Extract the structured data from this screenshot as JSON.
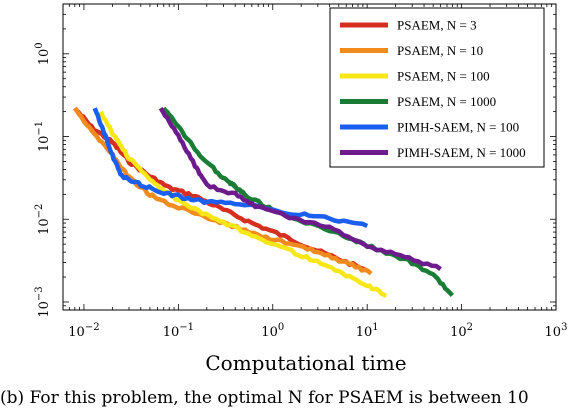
{
  "chart_data": {
    "type": "line",
    "xlabel": "Computational time",
    "ylabel": "",
    "x_scale": "log",
    "y_scale": "log",
    "xlim": [
      0.006,
      1000
    ],
    "ylim": [
      0.0008,
      4
    ],
    "x_ticks": [
      {
        "value": 0.01,
        "base": "10",
        "exp": "−2"
      },
      {
        "value": 0.1,
        "base": "10",
        "exp": "−1"
      },
      {
        "value": 1,
        "base": "10",
        "exp": "0"
      },
      {
        "value": 10,
        "base": "10",
        "exp": "1"
      },
      {
        "value": 100,
        "base": "10",
        "exp": "2"
      },
      {
        "value": 1000,
        "base": "10",
        "exp": "3"
      }
    ],
    "y_ticks": [
      {
        "value": 0.001,
        "base": "10",
        "exp": "−3"
      },
      {
        "value": 0.01,
        "base": "10",
        "exp": "−2"
      },
      {
        "value": 0.1,
        "base": "10",
        "exp": "−1"
      },
      {
        "value": 1,
        "base": "10",
        "exp": "0"
      }
    ],
    "grid": false,
    "legend_position": "top-right",
    "series": [
      {
        "name": "PSAEM, N = 3",
        "color": "#d62e1f",
        "x": [
          0.008,
          0.012,
          0.02,
          0.03,
          0.05,
          0.08,
          0.15,
          0.3,
          0.6,
          1.2,
          2.5,
          5,
          10
        ],
        "y": [
          0.22,
          0.13,
          0.085,
          0.05,
          0.033,
          0.024,
          0.019,
          0.013,
          0.009,
          0.0065,
          0.0045,
          0.0033,
          0.0024
        ]
      },
      {
        "name": "PSAEM, N = 10",
        "color": "#f28b1e",
        "x": [
          0.008,
          0.012,
          0.02,
          0.03,
          0.05,
          0.08,
          0.15,
          0.3,
          0.7,
          1.5,
          3,
          6,
          11
        ],
        "y": [
          0.22,
          0.12,
          0.06,
          0.032,
          0.02,
          0.015,
          0.012,
          0.009,
          0.0065,
          0.005,
          0.004,
          0.003,
          0.0022
        ]
      },
      {
        "name": "PSAEM, N = 100",
        "color": "#f7e716",
        "x": [
          0.015,
          0.02,
          0.03,
          0.05,
          0.08,
          0.15,
          0.3,
          0.6,
          1.2,
          2.5,
          5,
          10,
          16
        ],
        "y": [
          0.2,
          0.11,
          0.055,
          0.03,
          0.02,
          0.013,
          0.009,
          0.0065,
          0.0047,
          0.0033,
          0.0023,
          0.0016,
          0.0012
        ]
      },
      {
        "name": "PSAEM, N = 1000",
        "color": "#1b7d35",
        "x": [
          0.07,
          0.1,
          0.15,
          0.25,
          0.35,
          0.4,
          0.5,
          1,
          2,
          5,
          10,
          25,
          50,
          80
        ],
        "y": [
          0.22,
          0.13,
          0.07,
          0.038,
          0.028,
          0.025,
          0.02,
          0.013,
          0.0095,
          0.0068,
          0.0048,
          0.0033,
          0.0021,
          0.0012
        ]
      },
      {
        "name": "PIMH-SAEM, N = 100",
        "color": "#1b5ff0",
        "x": [
          0.013,
          0.016,
          0.02,
          0.025,
          0.04,
          0.07,
          0.12,
          0.2,
          0.5,
          1.5,
          4,
          10
        ],
        "y": [
          0.22,
          0.12,
          0.06,
          0.033,
          0.026,
          0.021,
          0.018,
          0.016,
          0.015,
          0.012,
          0.0103,
          0.0083
        ]
      },
      {
        "name": "PIMH-SAEM, N = 1000",
        "color": "#6d1b8c",
        "x": [
          0.065,
          0.1,
          0.15,
          0.2,
          0.4,
          0.7,
          1.5,
          4,
          10,
          25,
          60
        ],
        "y": [
          0.22,
          0.1,
          0.045,
          0.026,
          0.02,
          0.014,
          0.0108,
          0.0078,
          0.0048,
          0.0035,
          0.0025
        ]
      }
    ]
  },
  "caption": "(b) For this problem, the optimal N for PSAEM is between 10"
}
